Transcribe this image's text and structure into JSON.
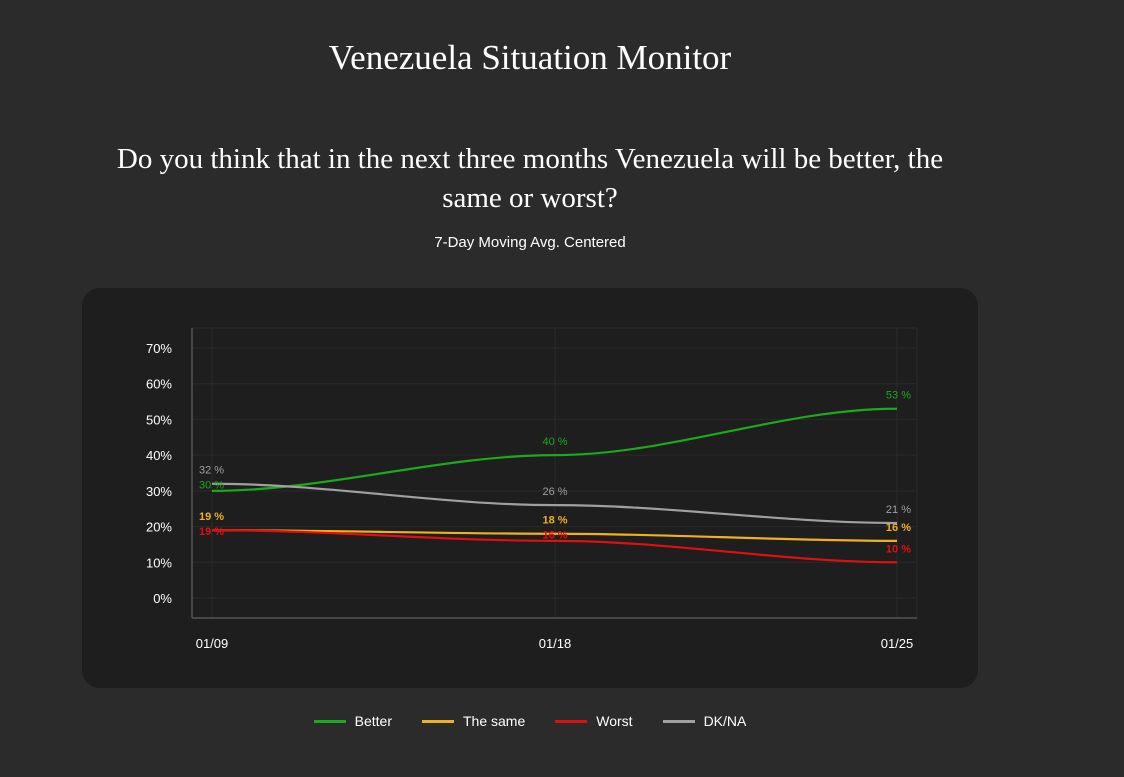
{
  "title": "Venezuela Situation Monitor",
  "question": "Do you think that in the next three months Venezuela will be better, the same or worst?",
  "subtitle": "7-Day Moving Avg. Centered",
  "chart_data": {
    "type": "line",
    "categories": [
      "01/09",
      "01/18",
      "01/25"
    ],
    "ylim": [
      -5.6,
      75.6
    ],
    "yticks": [
      0,
      10,
      20,
      30,
      40,
      50,
      60,
      70
    ],
    "ytick_labels": [
      "0%",
      "10%",
      "20%",
      "30%",
      "40%",
      "50%",
      "60%",
      "70%"
    ],
    "grid": true,
    "legend": "bottom",
    "data_label_suffix": " %",
    "series": [
      {
        "name": "Better",
        "color": "#1aaa1a",
        "values": [
          30,
          40,
          53
        ]
      },
      {
        "name": "The same",
        "color": "#f0b020",
        "values": [
          19,
          18,
          16
        ]
      },
      {
        "name": "Worst",
        "color": "#e01010",
        "values": [
          19,
          16,
          10
        ]
      },
      {
        "name": "DK/NA",
        "color": "#a0a0a0",
        "values": [
          32,
          26,
          21
        ]
      }
    ]
  }
}
